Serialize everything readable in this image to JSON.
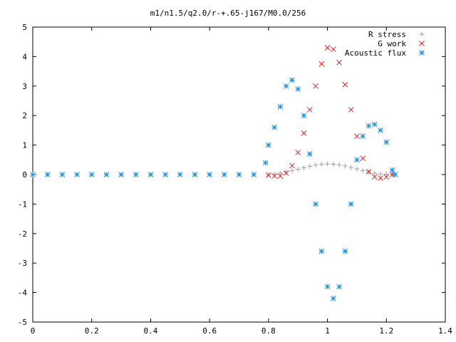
{
  "chart_data": {
    "type": "scatter",
    "title": "m1/n1.5/q2.0/r-+.65-j167/M0.0/256",
    "xlabel": "",
    "ylabel": "",
    "xlim": [
      0,
      1.4
    ],
    "ylim": [
      -5,
      5
    ],
    "xticks": [
      "0",
      "0.2",
      "0.4",
      "0.6",
      "0.8",
      "1",
      "1.2",
      "1.4"
    ],
    "yticks": [
      "5",
      "4",
      "3",
      "2",
      "1",
      "0",
      "-1",
      "-2",
      "-3",
      "-4",
      "-5"
    ],
    "grid": false,
    "legend_position": "top-right",
    "series": [
      {
        "name": "R stress",
        "marker": "plus",
        "color": "#a0a0a0",
        "points": [
          [
            0.8,
            0.0
          ],
          [
            0.82,
            0.02
          ],
          [
            0.84,
            0.05
          ],
          [
            0.86,
            0.09
          ],
          [
            0.88,
            0.13
          ],
          [
            0.9,
            0.18
          ],
          [
            0.92,
            0.23
          ],
          [
            0.94,
            0.28
          ],
          [
            0.96,
            0.32
          ],
          [
            0.98,
            0.35
          ],
          [
            1.0,
            0.36
          ],
          [
            1.02,
            0.35
          ],
          [
            1.04,
            0.33
          ],
          [
            1.06,
            0.29
          ],
          [
            1.08,
            0.24
          ],
          [
            1.1,
            0.19
          ],
          [
            1.12,
            0.13
          ],
          [
            1.14,
            0.08
          ],
          [
            1.16,
            0.04
          ],
          [
            1.18,
            0.02
          ],
          [
            1.2,
            0.01
          ],
          [
            1.22,
            0.0
          ]
        ]
      },
      {
        "name": "G work",
        "marker": "cross",
        "color": "#e41a1c",
        "points": [
          [
            0.8,
            -0.02
          ],
          [
            0.82,
            -0.05
          ],
          [
            0.84,
            -0.05
          ],
          [
            0.86,
            0.05
          ],
          [
            0.88,
            0.3
          ],
          [
            0.9,
            0.75
          ],
          [
            0.92,
            1.4
          ],
          [
            0.94,
            2.2
          ],
          [
            0.96,
            3.0
          ],
          [
            0.98,
            3.75
          ],
          [
            1.0,
            4.3
          ],
          [
            1.02,
            4.25
          ],
          [
            1.04,
            3.8
          ],
          [
            1.06,
            3.05
          ],
          [
            1.08,
            2.2
          ],
          [
            1.1,
            1.3
          ],
          [
            1.12,
            0.55
          ],
          [
            1.14,
            0.1
          ],
          [
            1.16,
            -0.08
          ],
          [
            1.18,
            -0.12
          ],
          [
            1.2,
            -0.08
          ],
          [
            1.22,
            0.0
          ]
        ]
      },
      {
        "name": "Acoustic flux",
        "marker": "star",
        "color": "#1f8dd6",
        "points": [
          [
            0.0,
            0.0
          ],
          [
            0.05,
            0.0
          ],
          [
            0.1,
            0.0
          ],
          [
            0.15,
            0.0
          ],
          [
            0.2,
            0.0
          ],
          [
            0.25,
            0.0
          ],
          [
            0.3,
            0.0
          ],
          [
            0.35,
            0.0
          ],
          [
            0.4,
            0.0
          ],
          [
            0.45,
            0.0
          ],
          [
            0.5,
            0.0
          ],
          [
            0.55,
            0.0
          ],
          [
            0.6,
            0.0
          ],
          [
            0.65,
            0.0
          ],
          [
            0.7,
            0.0
          ],
          [
            0.75,
            0.0
          ],
          [
            0.79,
            0.4
          ],
          [
            0.8,
            1.0
          ],
          [
            0.82,
            1.6
          ],
          [
            0.84,
            2.3
          ],
          [
            0.86,
            3.0
          ],
          [
            0.88,
            3.2
          ],
          [
            0.9,
            2.9
          ],
          [
            0.92,
            2.0
          ],
          [
            0.94,
            0.7
          ],
          [
            0.96,
            -1.0
          ],
          [
            0.98,
            -2.6
          ],
          [
            1.0,
            -3.8
          ],
          [
            1.02,
            -4.2
          ],
          [
            1.04,
            -3.8
          ],
          [
            1.06,
            -2.6
          ],
          [
            1.08,
            -1.0
          ],
          [
            1.1,
            0.5
          ],
          [
            1.12,
            1.3
          ],
          [
            1.14,
            1.65
          ],
          [
            1.16,
            1.7
          ],
          [
            1.18,
            1.5
          ],
          [
            1.2,
            1.1
          ],
          [
            1.22,
            0.15
          ],
          [
            1.23,
            0.0
          ]
        ]
      }
    ]
  }
}
